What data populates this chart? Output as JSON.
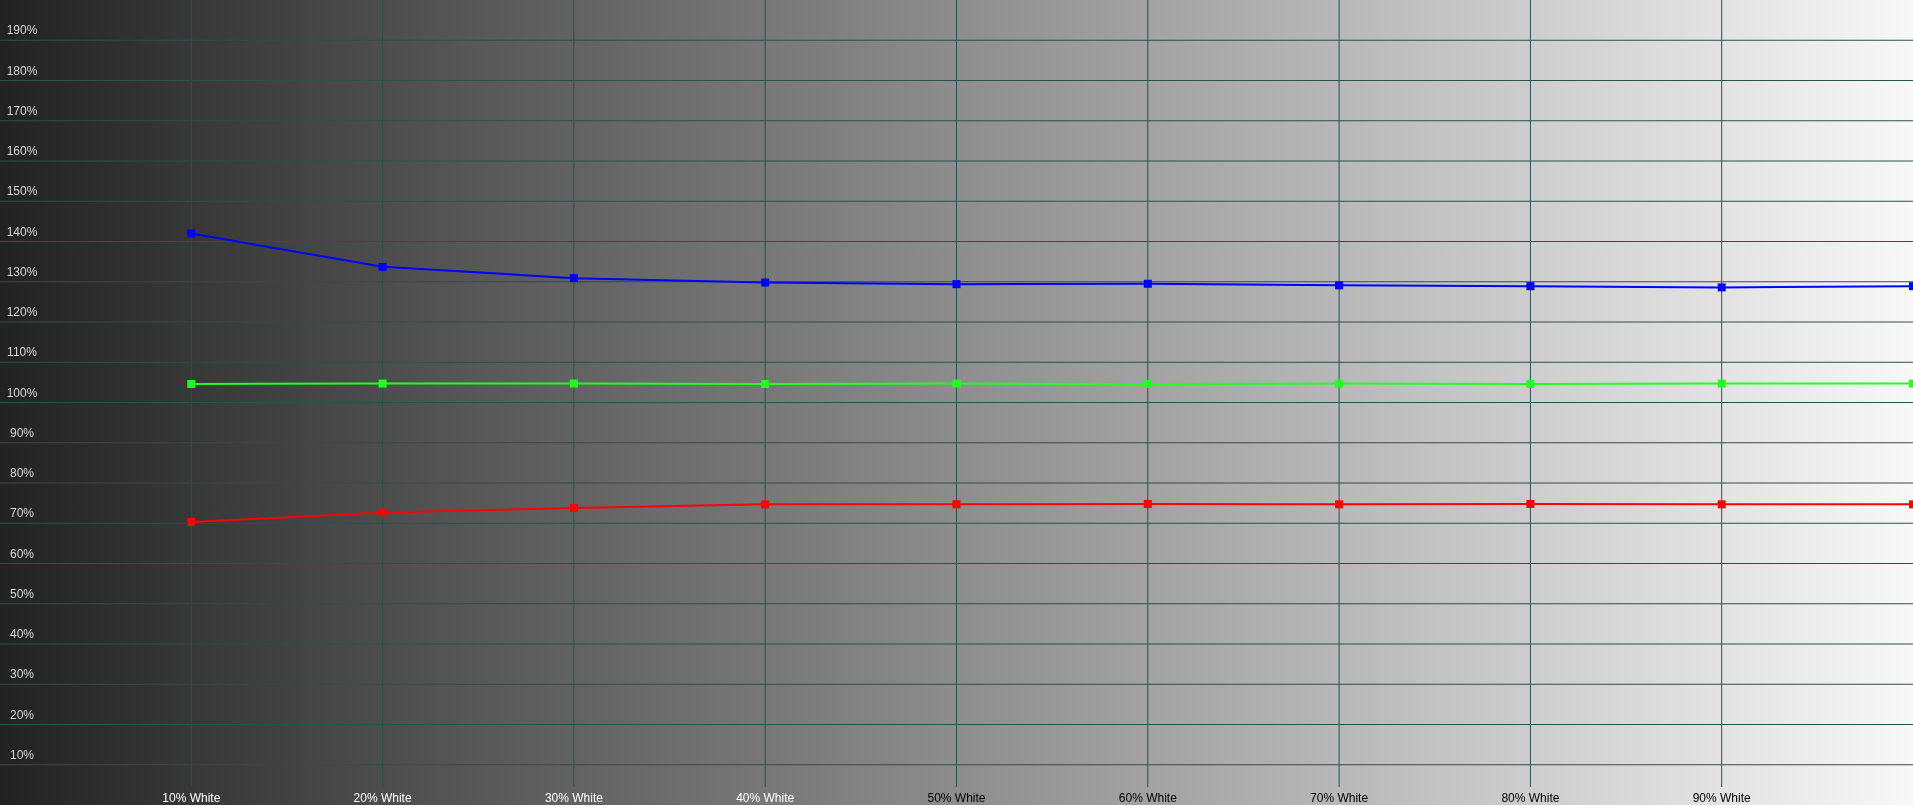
{
  "chart_data": {
    "type": "line",
    "x": [
      10,
      20,
      30,
      40,
      50,
      60,
      70,
      80,
      90,
      100
    ],
    "xlim": [
      0,
      100
    ],
    "xticks": [
      {
        "value": 10,
        "label": "10% White"
      },
      {
        "value": 20,
        "label": "20% White"
      },
      {
        "value": 30,
        "label": "30% White"
      },
      {
        "value": 40,
        "label": "40% White"
      },
      {
        "value": 50,
        "label": "50% White"
      },
      {
        "value": 60,
        "label": "60% White"
      },
      {
        "value": 70,
        "label": "70% White"
      },
      {
        "value": 80,
        "label": "80% White"
      },
      {
        "value": 90,
        "label": "90% White"
      }
    ],
    "ylim": [
      0,
      200
    ],
    "yticks": [
      {
        "value": 10,
        "label": "10%"
      },
      {
        "value": 20,
        "label": "20%"
      },
      {
        "value": 30,
        "label": "30%"
      },
      {
        "value": 40,
        "label": "40%"
      },
      {
        "value": 50,
        "label": "50%"
      },
      {
        "value": 60,
        "label": "60%"
      },
      {
        "value": 70,
        "label": "70%"
      },
      {
        "value": 80,
        "label": "80%"
      },
      {
        "value": 90,
        "label": "90%"
      },
      {
        "value": 100,
        "label": "100%"
      },
      {
        "value": 110,
        "label": "110%"
      },
      {
        "value": 120,
        "label": "120%"
      },
      {
        "value": 130,
        "label": "130%"
      },
      {
        "value": 140,
        "label": "140%"
      },
      {
        "value": 150,
        "label": "150%"
      },
      {
        "value": 160,
        "label": "160%"
      },
      {
        "value": 170,
        "label": "170%"
      },
      {
        "value": 180,
        "label": "180%"
      },
      {
        "value": 190,
        "label": "190%"
      }
    ],
    "grid": true,
    "marker": "square",
    "line_style": "solid",
    "series": [
      {
        "color": "#0000ff",
        "values": [
          142,
          133.7,
          130.9,
          129.8,
          129.4,
          129.5,
          129.1,
          128.9,
          128.6,
          128.9
        ]
      },
      {
        "color": "#22ff22",
        "values": [
          104.6,
          104.7,
          104.7,
          104.6,
          104.7,
          104.6,
          104.7,
          104.6,
          104.7,
          104.7
        ]
      },
      {
        "color": "#ff0000",
        "values": [
          70.3,
          72.7,
          73.8,
          74.7,
          74.7,
          74.8,
          74.7,
          74.8,
          74.7,
          74.7
        ]
      }
    ]
  }
}
